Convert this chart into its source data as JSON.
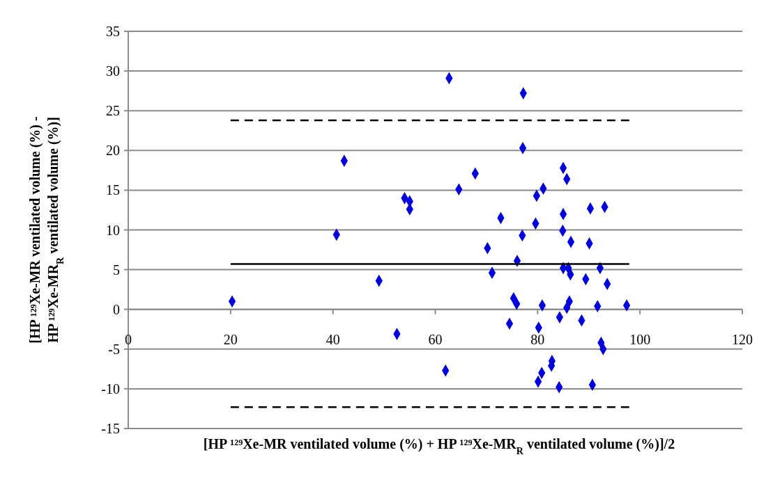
{
  "chart_data": {
    "type": "scatter",
    "xlabel": "[HP ¹²⁹Xe-MR ventilated volume (%) + HP ¹²⁹Xe-MR$_{R}$ ventilated volume (%)]/2",
    "ylabel": "[HP ¹²⁹Xe-MR ventilated volume (%) - HP ¹²⁹Xe-MR$_{R}$ ventilated volume (%)]",
    "xlim": [
      0,
      120
    ],
    "xticks": [
      0,
      20,
      40,
      60,
      80,
      100,
      120
    ],
    "ylim": [
      -15,
      35
    ],
    "yticks": [
      -15,
      -10,
      -5,
      0,
      5,
      10,
      15,
      20,
      25,
      30,
      35
    ],
    "grid": "y",
    "series": [
      {
        "color": "#0000e0",
        "marker": "diamond",
        "x": [
          20.3,
          40.7,
          42.2,
          49.0,
          52.5,
          54.0,
          55.0,
          55.0,
          62.7,
          77.2,
          77.1,
          85.0,
          85.7,
          67.8,
          64.6,
          81.1,
          79.8,
          72.8,
          79.6,
          85.0,
          90.3,
          93.1,
          77.0,
          84.9,
          70.2,
          71.1,
          76.0,
          86.5,
          90.1,
          85.0,
          86.0,
          86.4,
          89.4,
          92.2,
          93.6,
          75.3,
          75.9,
          80.9,
          86.2,
          85.7,
          91.7,
          97.4,
          84.3,
          88.6,
          74.5,
          80.2,
          92.4,
          92.8,
          82.8,
          82.7,
          62.0,
          80.8,
          80.1,
          84.2,
          90.7
        ],
        "values": [
          1.0,
          9.4,
          18.7,
          3.6,
          -3.1,
          14.0,
          13.6,
          12.6,
          29.1,
          27.2,
          20.3,
          17.8,
          16.4,
          17.1,
          15.1,
          15.2,
          14.3,
          11.5,
          10.8,
          12.0,
          12.7,
          12.9,
          9.3,
          9.9,
          7.7,
          4.6,
          6.1,
          8.5,
          8.3,
          5.2,
          5.2,
          4.4,
          3.8,
          5.2,
          3.2,
          1.4,
          0.7,
          0.5,
          1.0,
          0.2,
          0.4,
          0.5,
          -1.0,
          -1.4,
          -1.8,
          -2.3,
          -4.2,
          -5.0,
          -6.5,
          -7.1,
          -7.7,
          -8.0,
          -9.1,
          -9.8,
          -9.5
        ]
      },
      {
        "type": "line",
        "color": "#000000",
        "line_style": "solid",
        "x": [
          20,
          97.9
        ],
        "values": [
          5.7,
          5.7
        ]
      },
      {
        "type": "line",
        "color": "#000000",
        "line_style": "dashed",
        "x": [
          20,
          97.9
        ],
        "values": [
          23.8,
          23.8
        ]
      },
      {
        "type": "line",
        "color": "#000000",
        "line_style": "dashed",
        "x": [
          20,
          97.9
        ],
        "values": [
          -12.3,
          -12.3
        ]
      }
    ]
  }
}
